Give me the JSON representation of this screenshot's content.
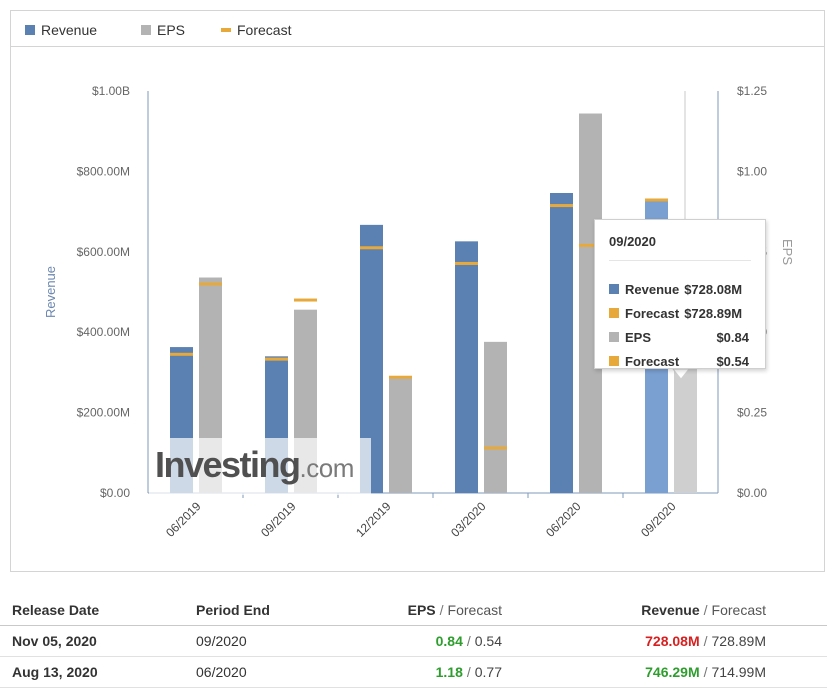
{
  "legend": [
    {
      "label": "Revenue",
      "color": "#5b80b2"
    },
    {
      "label": "EPS",
      "color": "#b3b3b3"
    },
    {
      "label": "Forecast",
      "color": "#e8a93b"
    }
  ],
  "chart_data": {
    "type": "bar",
    "categories": [
      "06/2019",
      "09/2019",
      "12/2019",
      "03/2020",
      "06/2020",
      "09/2020"
    ],
    "series": [
      {
        "name": "Revenue",
        "axis": "left",
        "values": [
          363,
          340,
          667,
          626,
          746.29,
          728.08
        ],
        "forecast": [
          345,
          333,
          610,
          571,
          714.99,
          728.89
        ]
      },
      {
        "name": "EPS",
        "axis": "right",
        "values": [
          0.67,
          0.57,
          0.36,
          0.47,
          1.18,
          0.84
        ],
        "forecast": [
          0.65,
          0.6,
          0.36,
          0.14,
          0.77,
          0.54
        ]
      }
    ],
    "highlighted_category": "09/2020",
    "y_left": {
      "label": "Revenue",
      "range": [
        0,
        1000
      ],
      "ticks": [
        "$0.00",
        "$200.00M",
        "$400.00M",
        "$600.00M",
        "$800.00M",
        "$1.00B"
      ]
    },
    "y_right": {
      "label": "EPS",
      "range": [
        0,
        1.25
      ],
      "ticks": [
        "$0.00",
        "$0.25",
        "$0.50",
        "$0.75",
        "$1.00",
        "$1.25"
      ]
    },
    "legend_position": "top-left",
    "grid": false
  },
  "tooltip": {
    "title": "09/2020",
    "rows": [
      {
        "label": "Revenue",
        "value": "$728.08M",
        "color": "#5b80b2"
      },
      {
        "label": "Forecast",
        "value": "$728.89M",
        "color": "#e8a93b"
      },
      {
        "label": "EPS",
        "value": "$0.84",
        "color": "#b3b3b3"
      },
      {
        "label": "Forecast",
        "value": "$0.54",
        "color": "#e8a93b"
      }
    ]
  },
  "watermark": {
    "brand": "Investing",
    "suffix": ".com"
  },
  "table": {
    "headers": {
      "release_date": "Release Date",
      "period_end": "Period End",
      "eps": "EPS",
      "eps_forecast": "Forecast",
      "revenue": "Revenue",
      "revenue_forecast": "Forecast",
      "separator": "/"
    },
    "rows": [
      {
        "release_date": "Nov 05, 2020",
        "period_end": "09/2020",
        "eps": "0.84",
        "eps_forecast": "0.54",
        "revenue": "728.08M",
        "revenue_forecast": "728.89M"
      },
      {
        "release_date": "Aug 13, 2020",
        "period_end": "06/2020",
        "eps": "1.18",
        "eps_forecast": "0.77",
        "revenue": "746.29M",
        "revenue_forecast": "714.99M"
      }
    ]
  }
}
